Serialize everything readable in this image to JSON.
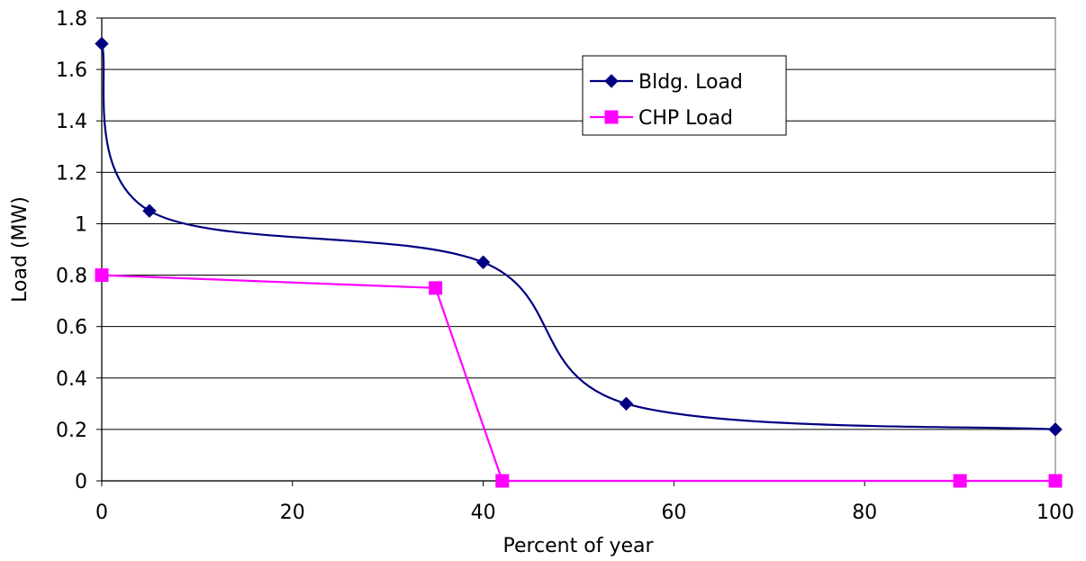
{
  "chart_data": {
    "type": "line",
    "title": "",
    "xlabel": "Percent of year",
    "ylabel": "Load (MW)",
    "xlim": [
      0,
      100
    ],
    "ylim": [
      0,
      1.8
    ],
    "x_ticks": [
      0,
      20,
      40,
      60,
      80,
      100
    ],
    "x_tick_labels": [
      "0",
      "20",
      "40",
      "60",
      "80",
      "100"
    ],
    "y_ticks": [
      0,
      0.2,
      0.4,
      0.6,
      0.8,
      1.0,
      1.2,
      1.4,
      1.6,
      1.8
    ],
    "y_tick_labels": [
      "0",
      "0.2",
      "0.4",
      "0.6",
      "0.8",
      "1",
      "1.2",
      "1.4",
      "1.6",
      "1.8"
    ],
    "grid": "horizontal",
    "legend_position": "top-right (inside plot)",
    "series": [
      {
        "name": "Bldg. Load",
        "color": "#000080",
        "marker": "diamond",
        "smooth": true,
        "x": [
          0,
          5,
          40,
          55,
          100
        ],
        "y": [
          1.7,
          1.05,
          0.85,
          0.3,
          0.2
        ]
      },
      {
        "name": "CHP Load",
        "color": "#ff00ff",
        "marker": "square",
        "smooth": false,
        "x": [
          0,
          35,
          42,
          90,
          100
        ],
        "y": [
          0.8,
          0.75,
          0,
          0,
          0
        ]
      }
    ]
  }
}
